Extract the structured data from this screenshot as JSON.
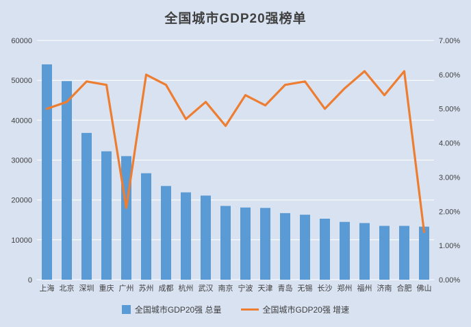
{
  "title": "全国城市GDP20强榜单",
  "legend": {
    "bars": "全国城市GDP20强 总量",
    "line": "全国城市GDP20强 增速"
  },
  "colors": {
    "background": "#d9e2f1",
    "bar": "#5b9bd5",
    "line": "#ed7d31",
    "grid": "#ffffff",
    "text": "#404040"
  },
  "chart_data": {
    "type": "bar",
    "title": "全国城市GDP20强榜单",
    "categories": [
      "上海",
      "北京",
      "深圳",
      "重庆",
      "广州",
      "苏州",
      "成都",
      "杭州",
      "武汉",
      "南京",
      "宁波",
      "天津",
      "青岛",
      "无锡",
      "长沙",
      "郑州",
      "福州",
      "济南",
      "合肥",
      "佛山"
    ],
    "series": [
      {
        "name": "全国城市GDP20强 总量",
        "type": "bar",
        "axis": "left",
        "values": [
          54000,
          49800,
          36800,
          32200,
          31000,
          26700,
          23500,
          21900,
          21100,
          18500,
          18100,
          18000,
          16700,
          16300,
          15300,
          14500,
          14200,
          13500,
          13500,
          13300
        ]
      },
      {
        "name": "全国城市GDP20强 增速",
        "type": "line",
        "axis": "right",
        "values": [
          5.0,
          5.2,
          5.8,
          5.7,
          2.1,
          6.0,
          5.7,
          4.7,
          5.2,
          4.5,
          5.4,
          5.1,
          5.7,
          5.8,
          5.0,
          5.6,
          6.1,
          5.4,
          6.1,
          1.4
        ]
      }
    ],
    "left_axis": {
      "min": 0,
      "max": 60000,
      "step": 10000,
      "tick_labels": [
        "0",
        "10000",
        "20000",
        "30000",
        "40000",
        "50000",
        "60000"
      ]
    },
    "right_axis": {
      "min": 0,
      "max": 7,
      "step": 1,
      "tick_labels": [
        "0.00%",
        "1.00%",
        "2.00%",
        "3.00%",
        "4.00%",
        "5.00%",
        "6.00%",
        "7.00%"
      ]
    },
    "grid": true,
    "legend_position": "bottom"
  }
}
